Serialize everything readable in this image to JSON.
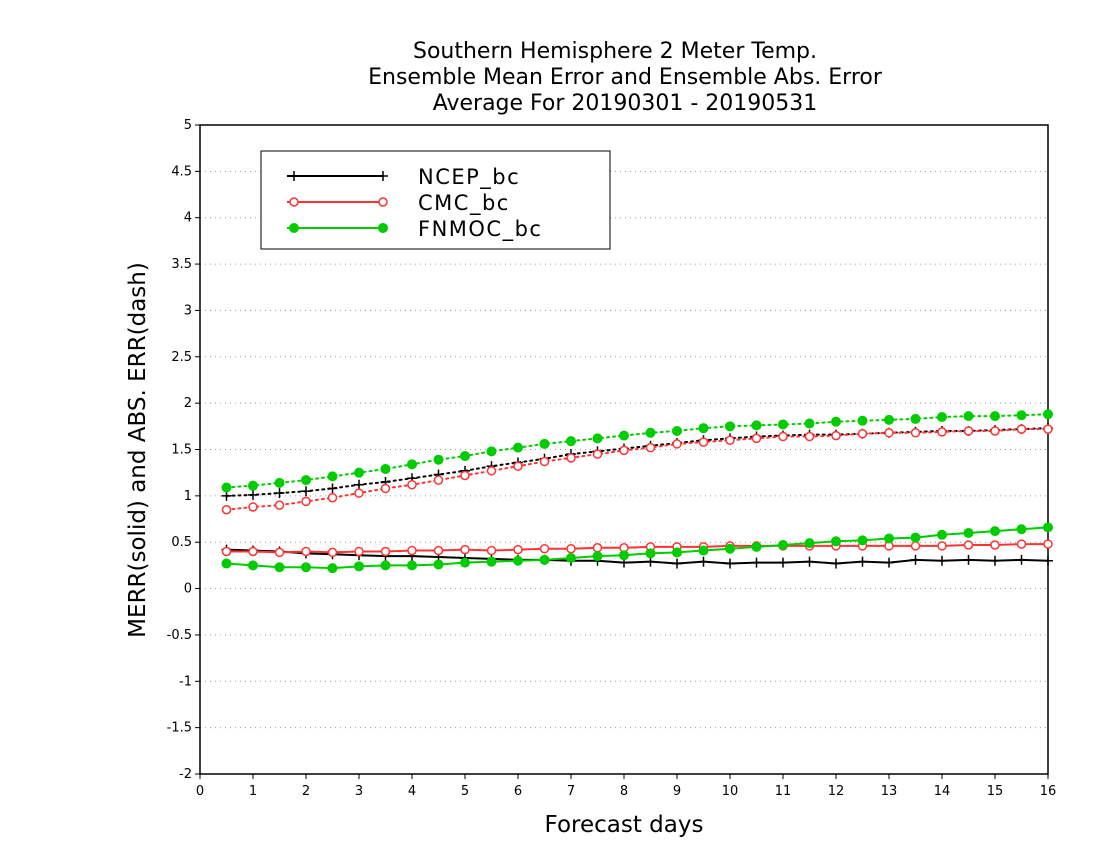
{
  "chart_data": {
    "type": "line",
    "title_lines": [
      "Southern Hemisphere 2 Meter Temp.",
      "Ensemble Mean Error and Ensemble Abs. Error",
      "Average For 20190301 - 20190531"
    ],
    "xlabel": "Forecast days",
    "ylabel": "MERR(solid) and ABS. ERR(dash)",
    "xlim": [
      0,
      16
    ],
    "ylim": [
      -2,
      5
    ],
    "xticks": [
      "0",
      "1",
      "2",
      "3",
      "4",
      "5",
      "6",
      "7",
      "8",
      "9",
      "10",
      "11",
      "12",
      "13",
      "14",
      "15",
      "16"
    ],
    "yticks": [
      "-2",
      "-1.5",
      "-1",
      "-0.5",
      "0",
      "0.5",
      "1",
      "1.5",
      "2",
      "2.5",
      "3",
      "3.5",
      "4",
      "4.5",
      "5"
    ],
    "grid": true,
    "legend_position": "top-left",
    "x": [
      0.5,
      1,
      1.5,
      2,
      2.5,
      3,
      3.5,
      4,
      4.5,
      5,
      5.5,
      6,
      6.5,
      7,
      7.5,
      8,
      8.5,
      9,
      9.5,
      10,
      10.5,
      11,
      11.5,
      12,
      12.5,
      13,
      13.5,
      14,
      14.5,
      15,
      15.5,
      16
    ],
    "series": [
      {
        "name": "NCEP_bc",
        "color": "#000000",
        "marker": "plus",
        "merr": [
          0.42,
          0.41,
          0.4,
          0.38,
          0.37,
          0.36,
          0.35,
          0.35,
          0.34,
          0.33,
          0.32,
          0.31,
          0.31,
          0.3,
          0.3,
          0.28,
          0.29,
          0.27,
          0.29,
          0.27,
          0.28,
          0.28,
          0.29,
          0.27,
          0.29,
          0.28,
          0.31,
          0.3,
          0.31,
          0.3,
          0.31,
          0.3
        ],
        "abs_err": [
          1.0,
          1.01,
          1.03,
          1.05,
          1.08,
          1.12,
          1.15,
          1.19,
          1.23,
          1.27,
          1.32,
          1.36,
          1.4,
          1.45,
          1.48,
          1.51,
          1.54,
          1.57,
          1.6,
          1.62,
          1.64,
          1.65,
          1.66,
          1.66,
          1.67,
          1.68,
          1.69,
          1.7,
          1.7,
          1.71,
          1.72,
          1.73
        ]
      },
      {
        "name": "CMC_bc",
        "color": "#ff3333",
        "marker": "open-circle",
        "merr": [
          0.4,
          0.4,
          0.39,
          0.4,
          0.39,
          0.4,
          0.4,
          0.41,
          0.41,
          0.42,
          0.41,
          0.42,
          0.43,
          0.43,
          0.44,
          0.44,
          0.45,
          0.45,
          0.45,
          0.46,
          0.46,
          0.46,
          0.46,
          0.46,
          0.46,
          0.46,
          0.46,
          0.46,
          0.47,
          0.47,
          0.48,
          0.48
        ],
        "abs_err": [
          0.85,
          0.88,
          0.9,
          0.94,
          0.98,
          1.03,
          1.08,
          1.12,
          1.17,
          1.22,
          1.27,
          1.32,
          1.37,
          1.41,
          1.45,
          1.49,
          1.52,
          1.56,
          1.58,
          1.6,
          1.62,
          1.64,
          1.64,
          1.65,
          1.67,
          1.68,
          1.68,
          1.69,
          1.7,
          1.7,
          1.72,
          1.72
        ]
      },
      {
        "name": "FNMOC_bc",
        "color": "#00cc00",
        "marker": "filled-circle",
        "merr": [
          0.27,
          0.25,
          0.23,
          0.23,
          0.22,
          0.24,
          0.25,
          0.25,
          0.26,
          0.28,
          0.29,
          0.3,
          0.31,
          0.33,
          0.35,
          0.36,
          0.38,
          0.39,
          0.41,
          0.43,
          0.45,
          0.47,
          0.49,
          0.51,
          0.52,
          0.54,
          0.55,
          0.58,
          0.6,
          0.62,
          0.64,
          0.66
        ],
        "abs_err": [
          1.09,
          1.11,
          1.14,
          1.17,
          1.21,
          1.25,
          1.29,
          1.34,
          1.39,
          1.43,
          1.48,
          1.52,
          1.56,
          1.59,
          1.62,
          1.65,
          1.68,
          1.7,
          1.73,
          1.75,
          1.76,
          1.77,
          1.78,
          1.8,
          1.81,
          1.82,
          1.83,
          1.85,
          1.86,
          1.86,
          1.87,
          1.88
        ]
      }
    ]
  }
}
